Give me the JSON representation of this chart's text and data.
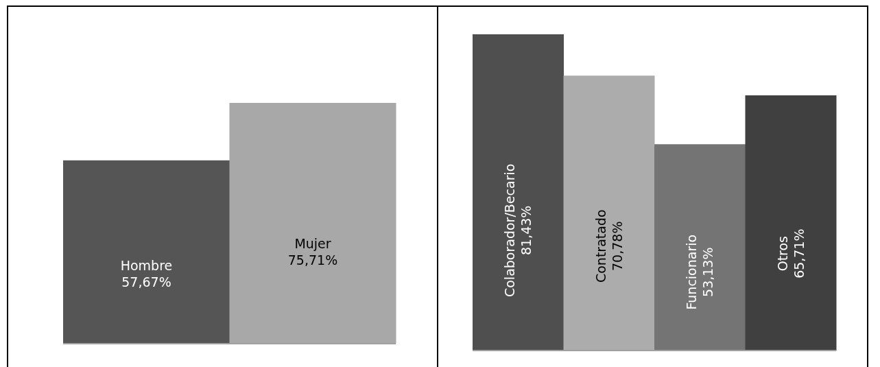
{
  "chart_data": [
    {
      "type": "bar",
      "categories": [
        "Hombre",
        "Mujer"
      ],
      "values": [
        57.67,
        75.71
      ],
      "colors": [
        "#555555",
        "#a8a8a8"
      ],
      "value_labels": [
        "57,67%",
        "75,71%"
      ],
      "tick_labels": false
    },
    {
      "type": "bar",
      "categories": [
        "Colaborador/Becario",
        "Contratado",
        "Funcionario",
        "Otros"
      ],
      "values": [
        81.43,
        70.78,
        53.13,
        65.71
      ],
      "colors": [
        "#4f4f4f",
        "#acacac",
        "#747474",
        "#404040"
      ],
      "value_labels": [
        "81,43%",
        "70,78%",
        "53,13%",
        "65,71%"
      ],
      "tick_labels": false
    }
  ]
}
